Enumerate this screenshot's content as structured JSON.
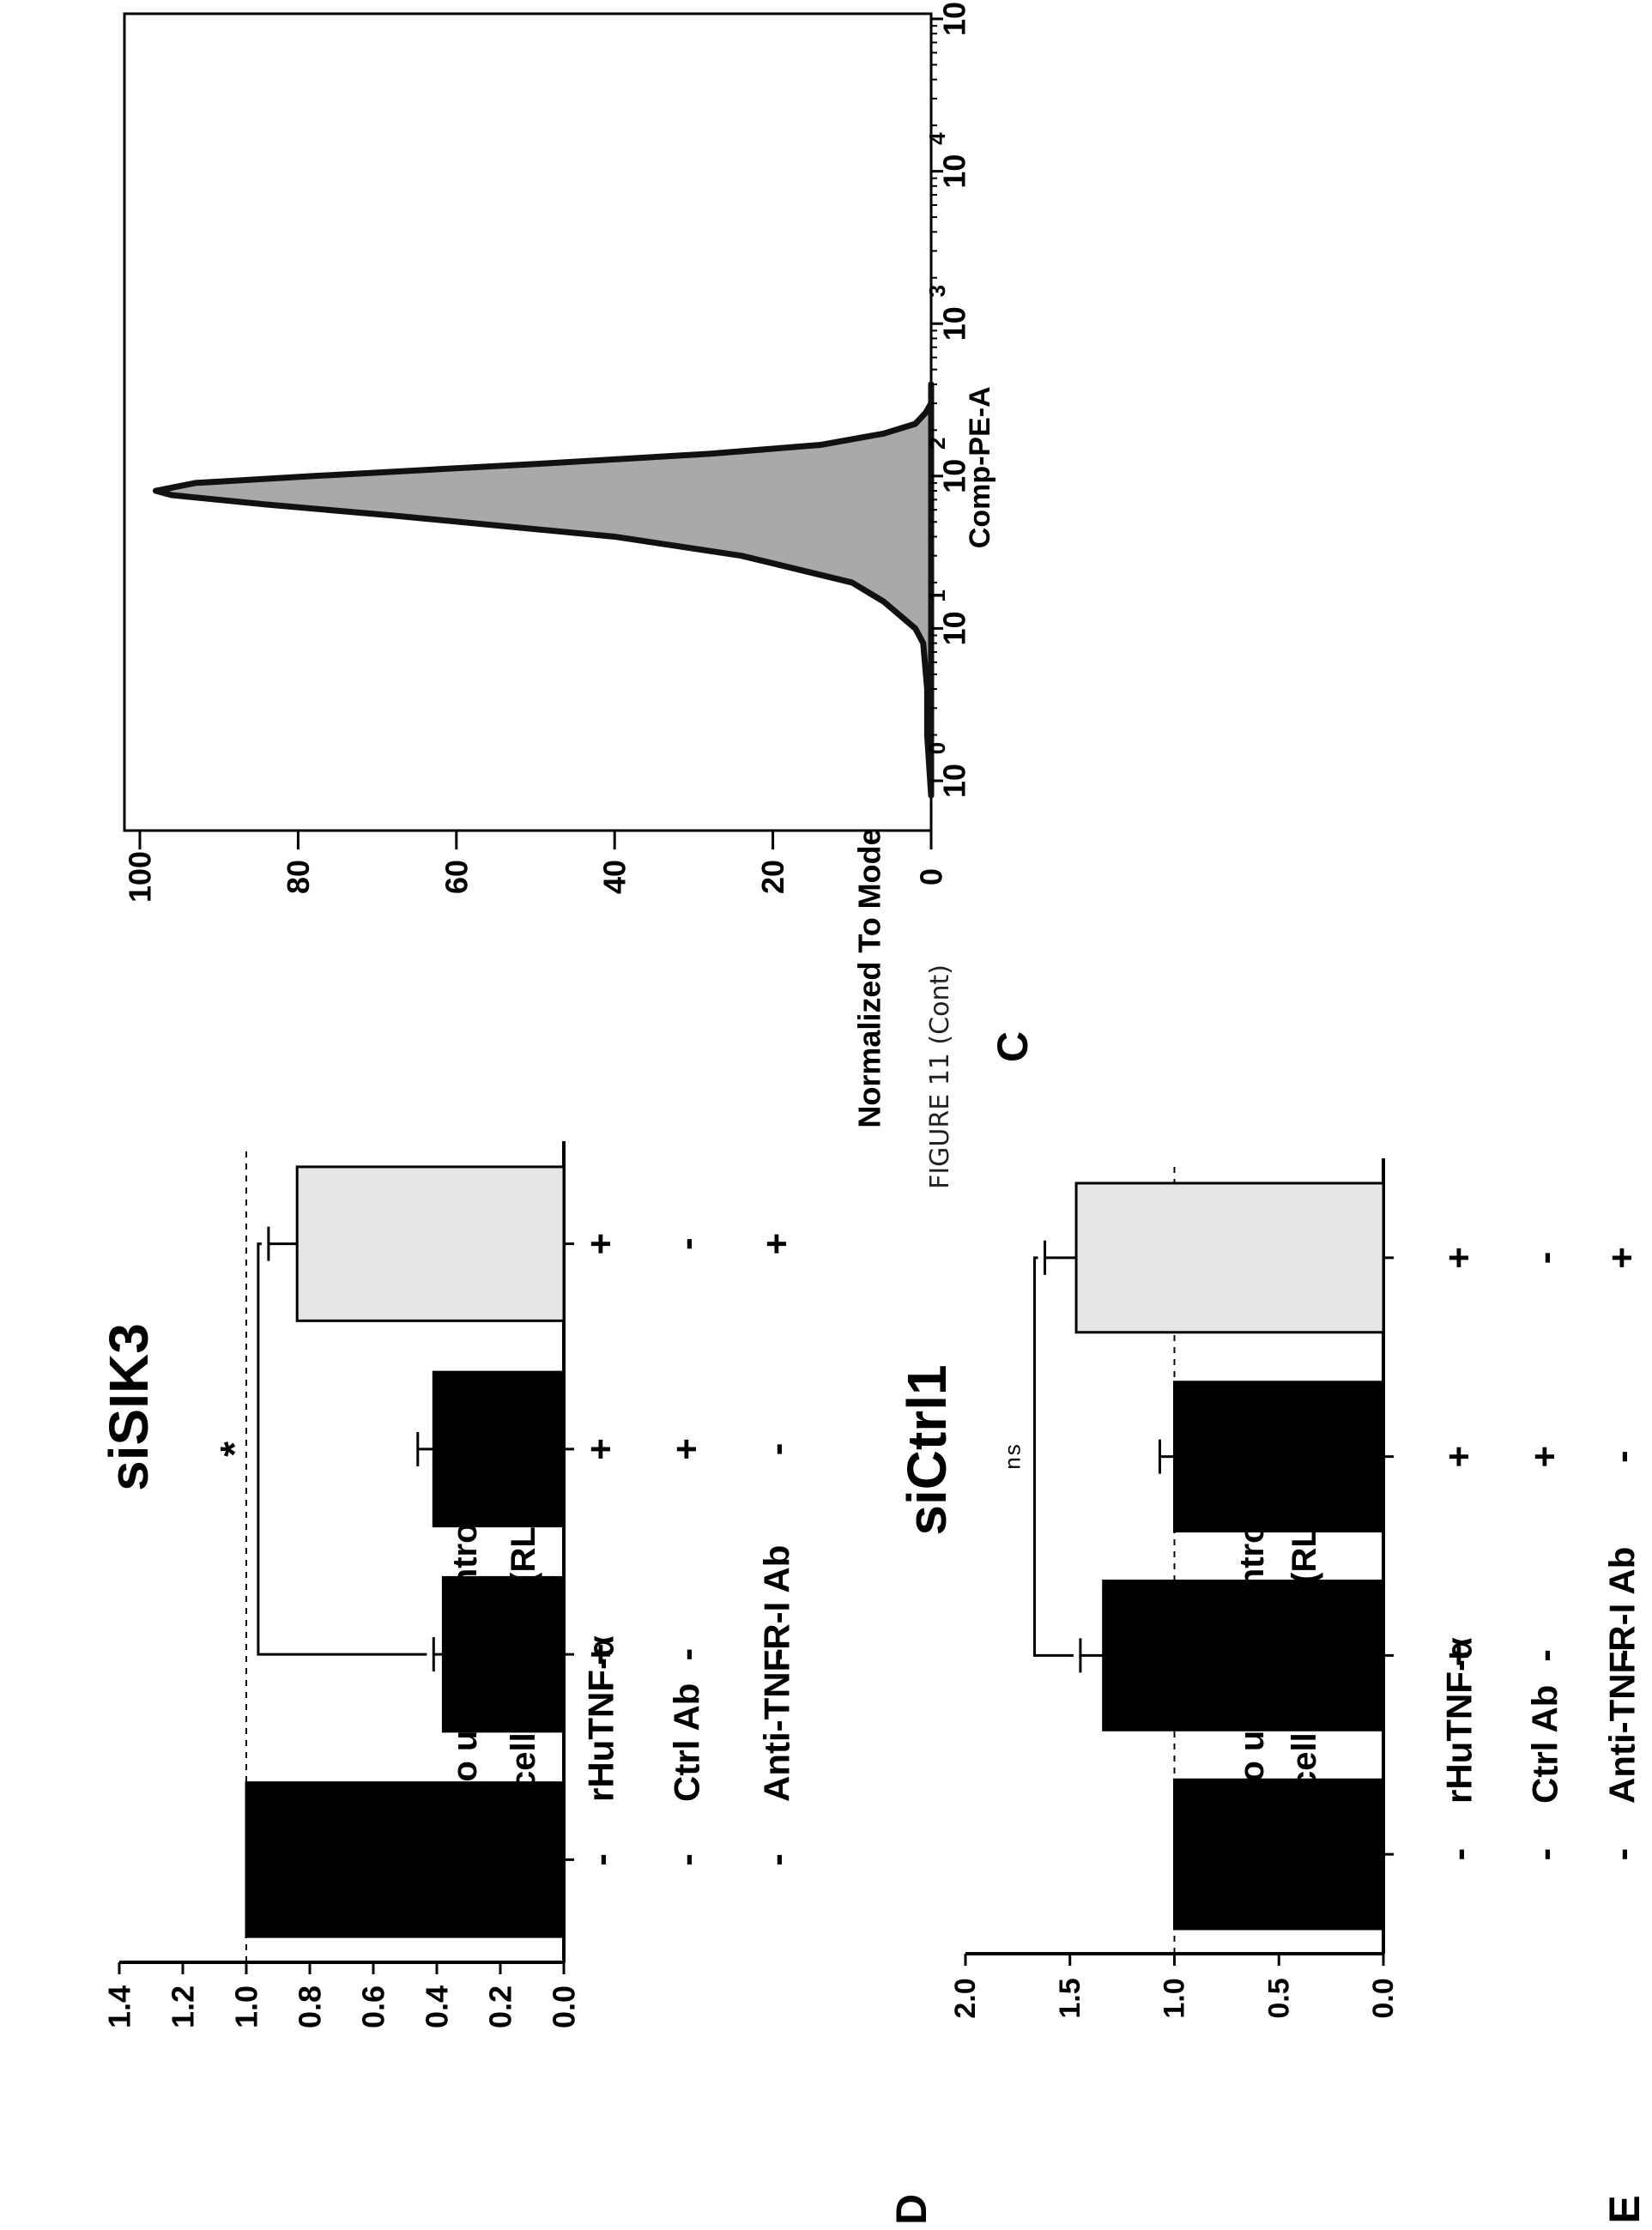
{
  "caption": "FIGURE 11 (Cont)",
  "chart_data": [
    {
      "id": "C",
      "panel_label": "C",
      "type": "area",
      "title": "",
      "xlabel": "Comp-PE-A",
      "ylabel": "Normalized To Mode",
      "x_scale": "log",
      "xlim": [
        1,
        100000
      ],
      "ylim": [
        0,
        100
      ],
      "x_ticks": [
        {
          "v": 1,
          "base": "10",
          "exp": "0"
        },
        {
          "v": 10,
          "base": "10",
          "exp": "1"
        },
        {
          "v": 100,
          "base": "10",
          "exp": "2"
        },
        {
          "v": 1000,
          "base": "10",
          "exp": "3"
        },
        {
          "v": 10000,
          "base": "10",
          "exp": "4"
        },
        {
          "v": 100000,
          "base": "10",
          "exp": "5"
        }
      ],
      "y_ticks": [
        "0",
        "20",
        "40",
        "60",
        "80",
        "100"
      ],
      "series": [
        {
          "x": [
            0.8,
            2,
            4,
            8,
            10,
            15,
            20,
            30,
            40,
            55,
            65,
            75,
            80,
            90,
            100,
            120,
            140,
            160,
            190,
            220,
            260,
            300,
            400
          ],
          "y": [
            0,
            0.5,
            0.5,
            1,
            2,
            6,
            10,
            24,
            40,
            68,
            84,
            96,
            98,
            93,
            78,
            50,
            28,
            14,
            6,
            2,
            0.7,
            0,
            0
          ]
        }
      ]
    },
    {
      "id": "D",
      "panel_label": "D",
      "type": "bar",
      "title": "siSIK3",
      "ylabel_lines": [
        "Tumour cell survival (RLU)",
        "(Norm. to unstim control)"
      ],
      "ylim": [
        0,
        1.4
      ],
      "y_ticks": [
        "0.0",
        "0.2",
        "0.4",
        "0.6",
        "0.8",
        "1.0",
        "1.2",
        "1.4"
      ],
      "reference_line": 1.0,
      "values": [
        1.0,
        0.38,
        0.41,
        0.84
      ],
      "errors": [
        0,
        0.03,
        0.05,
        0.09
      ],
      "bar_colors": [
        "#000000",
        "#000000",
        "#000000",
        "#e6e6e6"
      ],
      "significance": {
        "from": 1,
        "to": 3,
        "label": "*"
      },
      "row_labels": [
        "rHuTNF-α",
        "Ctrl Ab",
        "Anti-TNFR-I Ab"
      ],
      "conditions": [
        [
          "-",
          "-",
          "-"
        ],
        [
          "+",
          "-",
          "-"
        ],
        [
          "+",
          "+",
          "-"
        ],
        [
          "+",
          "-",
          "+"
        ]
      ]
    },
    {
      "id": "E",
      "panel_label": "E",
      "type": "bar",
      "title": "siCtrl1",
      "ylabel_lines": [
        "Tumour cell survival (RLU)",
        "(Norm. to unstim control)"
      ],
      "ylim": [
        0,
        2.0
      ],
      "y_ticks": [
        "0.0",
        "0.5",
        "1.0",
        "1.5",
        "2.0"
      ],
      "reference_line": 1.0,
      "values": [
        1.0,
        1.34,
        1.0,
        1.47
      ],
      "errors": [
        0,
        0.11,
        0.07,
        0.15
      ],
      "bar_colors": [
        "#000000",
        "#000000",
        "#000000",
        "#e6e6e6"
      ],
      "significance": {
        "from": 1,
        "to": 3,
        "label": "ns"
      },
      "row_labels": [
        "rHuTNF-α",
        "Ctrl Ab",
        "Anti-TNFR-I Ab"
      ],
      "conditions": [
        [
          "-",
          "-",
          "-"
        ],
        [
          "+",
          "-",
          "-"
        ],
        [
          "+",
          "+",
          "-"
        ],
        [
          "+",
          "-",
          "+"
        ]
      ]
    }
  ]
}
